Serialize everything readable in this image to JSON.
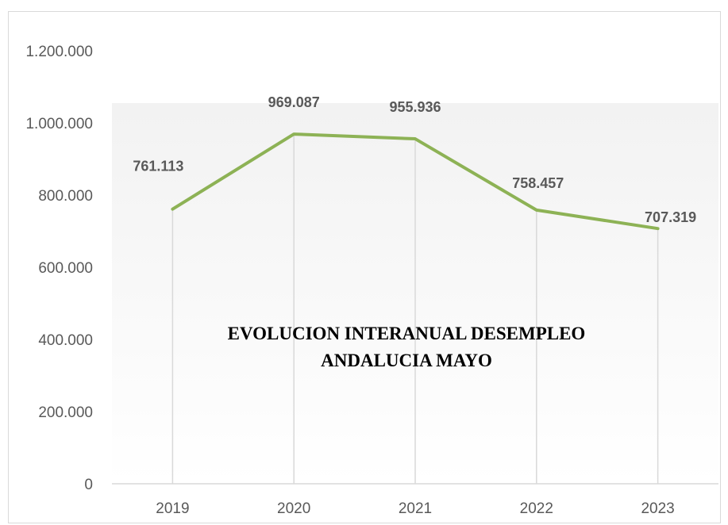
{
  "chart_data": {
    "type": "line",
    "title_lines": [
      "EVOLUCION INTERANUAL DESEMPLEO",
      "ANDALUCIA MAYO"
    ],
    "categories": [
      "2019",
      "2020",
      "2021",
      "2022",
      "2023"
    ],
    "series": [
      {
        "values": [
          761113,
          969087,
          955936,
          758457,
          707319
        ]
      }
    ],
    "data_labels": [
      "761.113",
      "969.087",
      "955.936",
      "758.457",
      "707.319"
    ],
    "y_ticks": [
      0,
      200000,
      400000,
      600000,
      800000,
      1000000,
      1200000
    ],
    "y_tick_labels": [
      "0",
      "200.000",
      "400.000",
      "600.000",
      "800.000",
      "1.000.000",
      "1.200.000"
    ],
    "ylim": [
      0,
      1200000
    ],
    "grid": false,
    "drop_lines": true,
    "colors": {
      "line": "#8db255",
      "drop_line": "#d9d9d9",
      "axis": "#d9d9d9",
      "text": "#595959",
      "title": "#000000",
      "plot_bg_top": "#f2f2f2",
      "plot_bg_bottom": "#ffffff"
    }
  }
}
